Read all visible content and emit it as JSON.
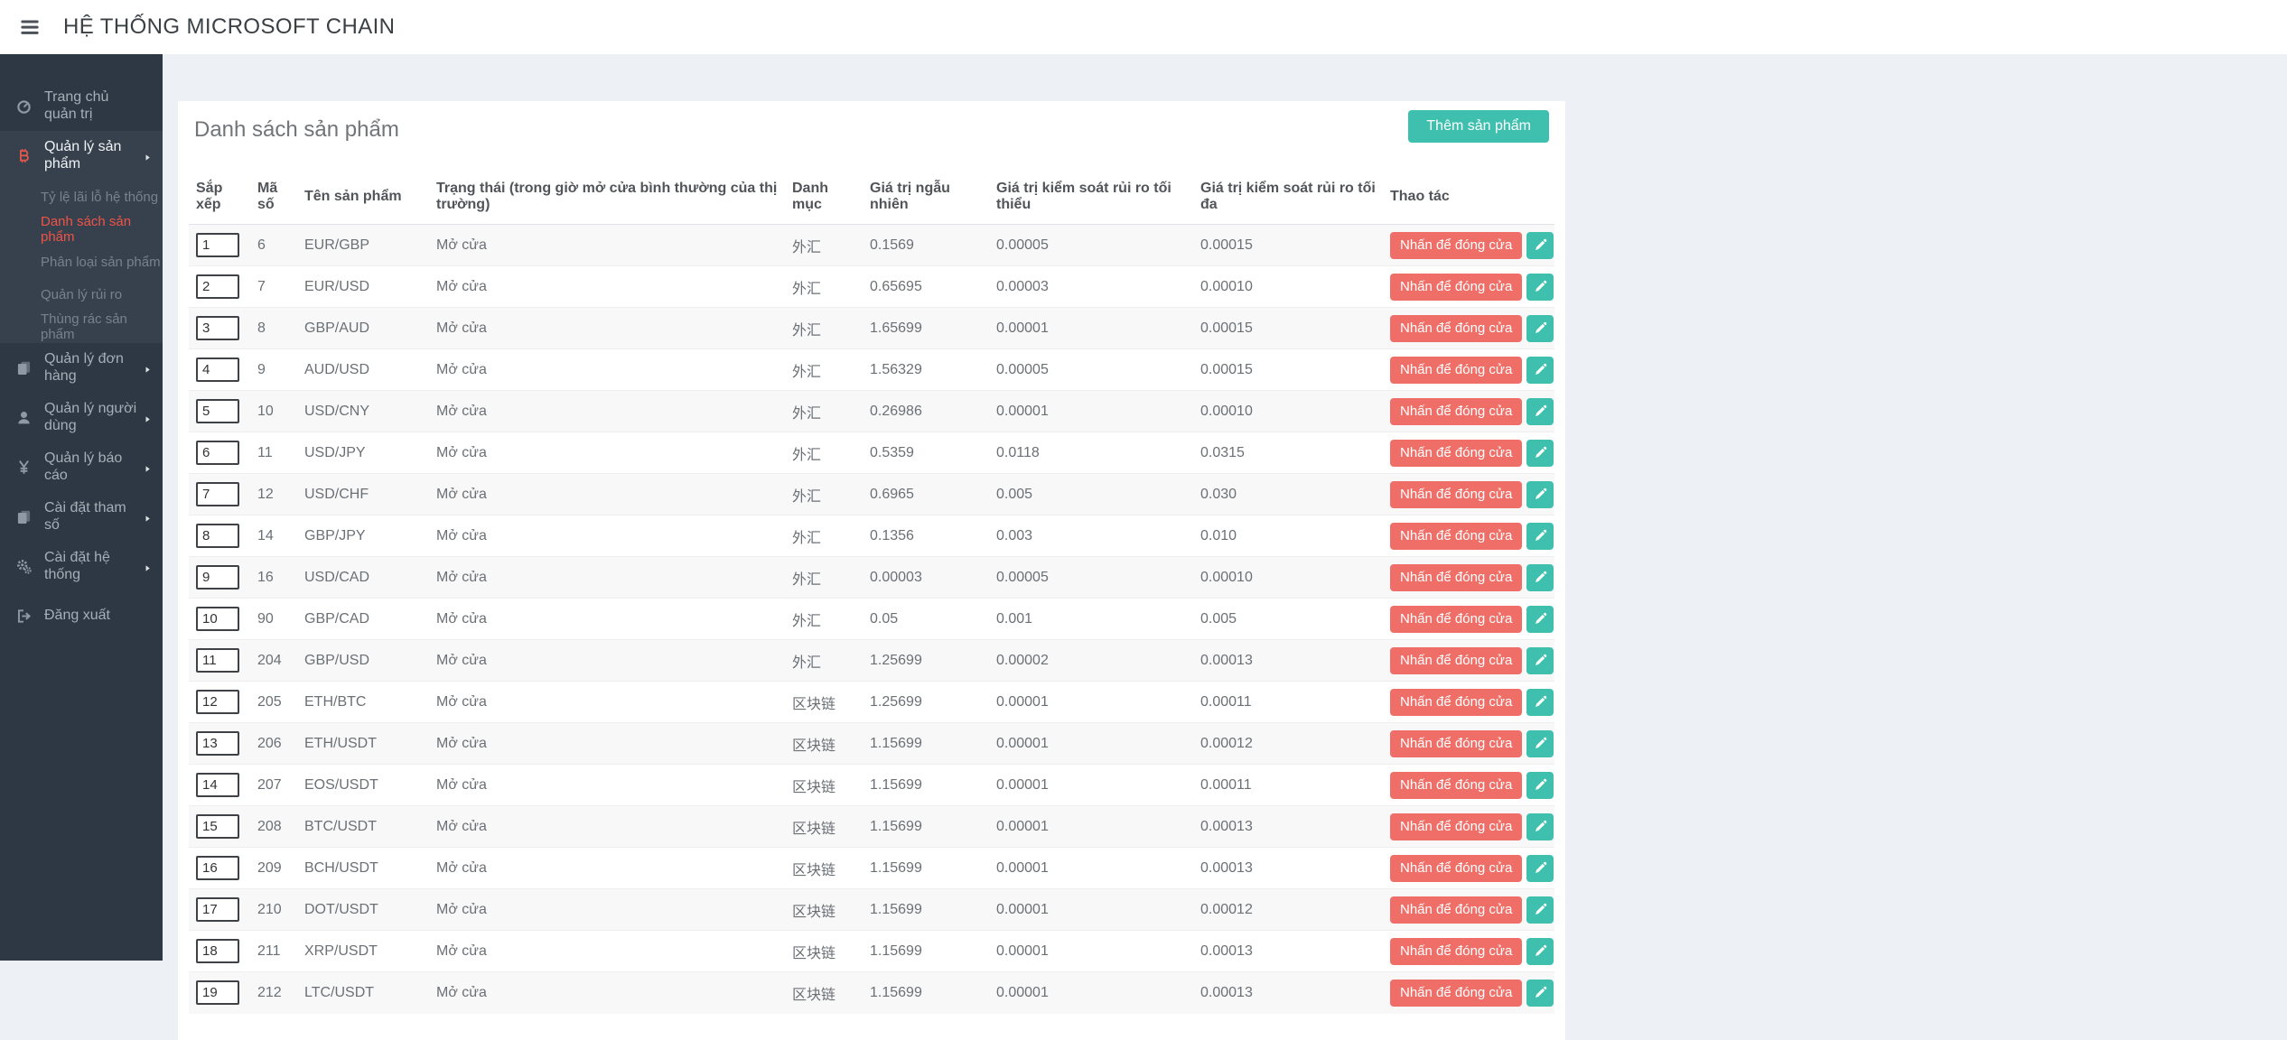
{
  "header": {
    "brand": "HỆ THỐNG MICROSOFT CHAIN"
  },
  "colors": {
    "accent_teal": "#3fc0ae",
    "accent_salmon": "#ef6f68",
    "sidebar_bg": "#2e3844",
    "submenu_bg": "#37414d",
    "active_item_red": "#ef5348",
    "page_bg": "#edf0f4"
  },
  "sidebar": {
    "items": [
      {
        "id": "dashboard",
        "label": "Trang chủ quản trị",
        "icon": "tachometer-icon",
        "arrow": false
      },
      {
        "id": "products",
        "label": "Quản lý sản phẩm",
        "icon": "bitcoin-icon",
        "arrow": true,
        "expanded": true,
        "children": [
          {
            "label": "Tỷ lệ lãi lỗ hệ thống",
            "active": false
          },
          {
            "label": "Danh sách sản phẩm",
            "active": true
          },
          {
            "label": "Phân loại sản phẩm",
            "active": false
          },
          {
            "label": "Quản lý rủi ro",
            "active": false
          },
          {
            "label": "Thùng rác sản phẩm",
            "active": false
          }
        ]
      },
      {
        "id": "orders",
        "label": "Quản lý đơn hàng",
        "icon": "files-icon",
        "arrow": true
      },
      {
        "id": "users",
        "label": "Quản lý người dùng",
        "icon": "user-icon",
        "arrow": true
      },
      {
        "id": "reports",
        "label": "Quản lý báo cáo",
        "icon": "yen-icon",
        "arrow": true
      },
      {
        "id": "params",
        "label": "Cài đặt tham số",
        "icon": "files-icon",
        "arrow": true
      },
      {
        "id": "system",
        "label": "Cài đặt hệ thống",
        "icon": "gears-icon",
        "arrow": true
      },
      {
        "id": "logout",
        "label": "Đăng xuất",
        "icon": "signout-icon",
        "arrow": false
      }
    ]
  },
  "main": {
    "card_title": "Danh sách sản phẩm",
    "add_button_label": "Thêm sản phẩm",
    "table": {
      "headers": [
        "Sắp xếp",
        "Mã số",
        "Tên sản phẩm",
        "Trạng thái (trong giờ mở cửa bình thường của thị trường)",
        "Danh mục",
        "Giá trị ngẫu nhiên",
        "Giá trị kiểm soát rủi ro tối thiểu",
        "Giá trị kiểm soát rủi ro tối đa",
        "Thao tác"
      ],
      "close_button_label": "Nhấn để đóng cửa",
      "rows": [
        {
          "sort": "1",
          "code": "6",
          "name": "EUR/GBP",
          "status": "Mở cửa",
          "category": "外汇",
          "random": "0.1569",
          "risk_min": "0.00005",
          "risk_max": "0.00015"
        },
        {
          "sort": "2",
          "code": "7",
          "name": "EUR/USD",
          "status": "Mở cửa",
          "category": "外汇",
          "random": "0.65695",
          "risk_min": "0.00003",
          "risk_max": "0.00010"
        },
        {
          "sort": "3",
          "code": "8",
          "name": "GBP/AUD",
          "status": "Mở cửa",
          "category": "外汇",
          "random": "1.65699",
          "risk_min": "0.00001",
          "risk_max": "0.00015"
        },
        {
          "sort": "4",
          "code": "9",
          "name": "AUD/USD",
          "status": "Mở cửa",
          "category": "外汇",
          "random": "1.56329",
          "risk_min": "0.00005",
          "risk_max": "0.00015"
        },
        {
          "sort": "5",
          "code": "10",
          "name": "USD/CNY",
          "status": "Mở cửa",
          "category": "外汇",
          "random": "0.26986",
          "risk_min": "0.00001",
          "risk_max": "0.00010"
        },
        {
          "sort": "6",
          "code": "11",
          "name": "USD/JPY",
          "status": "Mở cửa",
          "category": "外汇",
          "random": "0.5359",
          "risk_min": "0.0118",
          "risk_max": "0.0315"
        },
        {
          "sort": "7",
          "code": "12",
          "name": "USD/CHF",
          "status": "Mở cửa",
          "category": "外汇",
          "random": "0.6965",
          "risk_min": "0.005",
          "risk_max": "0.030"
        },
        {
          "sort": "8",
          "code": "14",
          "name": "GBP/JPY",
          "status": "Mở cửa",
          "category": "外汇",
          "random": "0.1356",
          "risk_min": "0.003",
          "risk_max": "0.010"
        },
        {
          "sort": "9",
          "code": "16",
          "name": "USD/CAD",
          "status": "Mở cửa",
          "category": "外汇",
          "random": "0.00003",
          "risk_min": "0.00005",
          "risk_max": "0.00010"
        },
        {
          "sort": "10",
          "code": "90",
          "name": "GBP/CAD",
          "status": "Mở cửa",
          "category": "外汇",
          "random": "0.05",
          "risk_min": "0.001",
          "risk_max": "0.005"
        },
        {
          "sort": "11",
          "code": "204",
          "name": "GBP/USD",
          "status": "Mở cửa",
          "category": "外汇",
          "random": "1.25699",
          "risk_min": "0.00002",
          "risk_max": "0.00013"
        },
        {
          "sort": "12",
          "code": "205",
          "name": "ETH/BTC",
          "status": "Mở cửa",
          "category": "区块链",
          "random": "1.25699",
          "risk_min": "0.00001",
          "risk_max": "0.00011"
        },
        {
          "sort": "13",
          "code": "206",
          "name": "ETH/USDT",
          "status": "Mở cửa",
          "category": "区块链",
          "random": "1.15699",
          "risk_min": "0.00001",
          "risk_max": "0.00012"
        },
        {
          "sort": "14",
          "code": "207",
          "name": "EOS/USDT",
          "status": "Mở cửa",
          "category": "区块链",
          "random": "1.15699",
          "risk_min": "0.00001",
          "risk_max": "0.00011"
        },
        {
          "sort": "15",
          "code": "208",
          "name": "BTC/USDT",
          "status": "Mở cửa",
          "category": "区块链",
          "random": "1.15699",
          "risk_min": "0.00001",
          "risk_max": "0.00013"
        },
        {
          "sort": "16",
          "code": "209",
          "name": "BCH/USDT",
          "status": "Mở cửa",
          "category": "区块链",
          "random": "1.15699",
          "risk_min": "0.00001",
          "risk_max": "0.00013"
        },
        {
          "sort": "17",
          "code": "210",
          "name": "DOT/USDT",
          "status": "Mở cửa",
          "category": "区块链",
          "random": "1.15699",
          "risk_min": "0.00001",
          "risk_max": "0.00012"
        },
        {
          "sort": "18",
          "code": "211",
          "name": "XRP/USDT",
          "status": "Mở cửa",
          "category": "区块链",
          "random": "1.15699",
          "risk_min": "0.00001",
          "risk_max": "0.00013"
        },
        {
          "sort": "19",
          "code": "212",
          "name": "LTC/USDT",
          "status": "Mở cửa",
          "category": "区块链",
          "random": "1.15699",
          "risk_min": "0.00001",
          "risk_max": "0.00013"
        }
      ]
    }
  }
}
